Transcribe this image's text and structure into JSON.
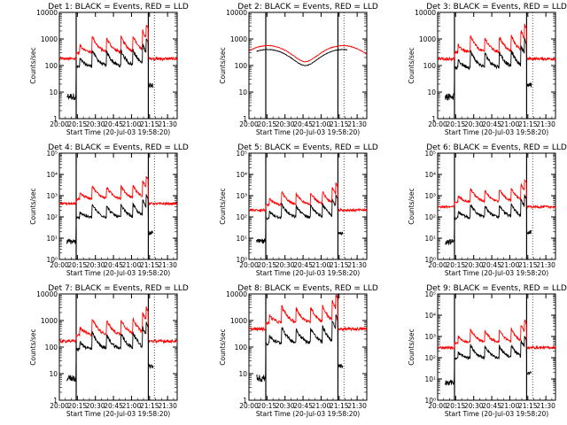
{
  "figure": {
    "time_ticks": [
      "20:00",
      "20:15",
      "20:30",
      "20:45",
      "21:00",
      "21:15",
      "21:30"
    ],
    "colors": {
      "events": "#000000",
      "lld": "#ff0000",
      "background": "#ffffff"
    }
  },
  "chart_data": [
    {
      "type": "line",
      "title": "Det 1: BLACK = Events, RED = LLD",
      "xlabel": "Start Time (20-Jul-03 19:58:20)",
      "ylabel": "Counts/sec",
      "yscale": "log",
      "ylim": [
        1,
        10000
      ],
      "ytick_labels": [
        "1",
        "10",
        "100",
        "1000",
        "10000"
      ],
      "xlim": [
        "20:00",
        "21:38"
      ],
      "x_ticks": [
        "20:00",
        "20:15",
        "20:30",
        "20:45",
        "21:00",
        "21:15",
        "21:30"
      ],
      "marker_lines": [
        "20:14",
        "21:14"
      ],
      "profile": "flare",
      "series": [
        {
          "name": "Events",
          "color": "#000000",
          "level": 100
        },
        {
          "name": "LLD",
          "color": "#ff0000",
          "level": 300
        }
      ]
    },
    {
      "type": "line",
      "title": "Det 2: BLACK = Events, RED = LLD",
      "xlabel": "Start Time (20-Jul-03 19:58:20)",
      "ylabel": "Counts/sec",
      "yscale": "log",
      "ylim": [
        1,
        10000
      ],
      "ytick_labels": [
        "1",
        "10",
        "100",
        "1000",
        "10000"
      ],
      "xlim": [
        "20:00",
        "21:38"
      ],
      "x_ticks": [
        "20:00",
        "20:15",
        "20:30",
        "20:45",
        "21:00",
        "21:15",
        "21:30"
      ],
      "marker_lines": [
        "20:14",
        "21:14"
      ],
      "profile": "smooth",
      "series": [
        {
          "name": "Events",
          "color": "#000000",
          "level": 250
        },
        {
          "name": "LLD",
          "color": "#ff0000",
          "level": 350
        }
      ]
    },
    {
      "type": "line",
      "title": "Det 3: BLACK = Events, RED = LLD",
      "xlabel": "Start Time (20-Jul-03 19:58:20)",
      "ylabel": "Counts/sec",
      "yscale": "log",
      "ylim": [
        1,
        10000
      ],
      "ytick_labels": [
        "1",
        "10",
        "100",
        "1000",
        "10000"
      ],
      "xlim": [
        "20:00",
        "21:38"
      ],
      "x_ticks": [
        "20:00",
        "20:15",
        "20:30",
        "20:45",
        "21:00",
        "21:15",
        "21:30"
      ],
      "marker_lines": [
        "20:14",
        "21:14"
      ],
      "profile": "flare",
      "series": [
        {
          "name": "Events",
          "color": "#000000",
          "level": 90
        },
        {
          "name": "LLD",
          "color": "#ff0000",
          "level": 300
        }
      ]
    },
    {
      "type": "line",
      "title": "Det 4: BLACK = Events, RED = LLD",
      "xlabel": "Start Time (20-Jul-03 19:58:20)",
      "ylabel": "Counts/sec",
      "yscale": "log",
      "ylim": [
        1,
        100000
      ],
      "ytick_labels": [
        "10⁰",
        "10¹",
        "10²",
        "10³",
        "10⁴",
        "10⁵"
      ],
      "xlim": [
        "20:00",
        "21:38"
      ],
      "x_ticks": [
        "20:00",
        "20:15",
        "20:30",
        "20:45",
        "21:00",
        "21:15",
        "21:30"
      ],
      "marker_lines": [
        "20:14",
        "21:14"
      ],
      "profile": "flare",
      "series": [
        {
          "name": "Events",
          "color": "#000000",
          "level": 100
        },
        {
          "name": "LLD",
          "color": "#ff0000",
          "level": 700
        }
      ]
    },
    {
      "type": "line",
      "title": "Det 5: BLACK = Events, RED = LLD",
      "xlabel": "Start Time (20-Jul-03 19:58:20)",
      "ylabel": "Counts/sec",
      "yscale": "log",
      "ylim": [
        1,
        100000
      ],
      "ytick_labels": [
        "10⁰",
        "10¹",
        "10²",
        "10³",
        "10⁴",
        "10⁵"
      ],
      "xlim": [
        "20:00",
        "21:38"
      ],
      "x_ticks": [
        "20:00",
        "20:15",
        "20:30",
        "20:45",
        "21:00",
        "21:15",
        "21:30"
      ],
      "marker_lines": [
        "20:14",
        "21:14"
      ],
      "profile": "flare",
      "series": [
        {
          "name": "Events",
          "color": "#000000",
          "level": 100
        },
        {
          "name": "LLD",
          "color": "#ff0000",
          "level": 350
        }
      ]
    },
    {
      "type": "line",
      "title": "Det 6: BLACK = Events, RED = LLD",
      "xlabel": "Start Time (20-Jul-03 19:58:20)",
      "ylabel": "Counts/sec",
      "yscale": "log",
      "ylim": [
        1,
        100000
      ],
      "ytick_labels": [
        "10⁰",
        "10¹",
        "10²",
        "10³",
        "10⁴",
        "10⁵"
      ],
      "xlim": [
        "20:00",
        "21:38"
      ],
      "x_ticks": [
        "20:00",
        "20:15",
        "20:30",
        "20:45",
        "21:00",
        "21:15",
        "21:30"
      ],
      "marker_lines": [
        "20:14",
        "21:14"
      ],
      "profile": "flare",
      "series": [
        {
          "name": "Events",
          "color": "#000000",
          "level": 100
        },
        {
          "name": "LLD",
          "color": "#ff0000",
          "level": 500
        }
      ]
    },
    {
      "type": "line",
      "title": "Det 7: BLACK = Events, RED = LLD",
      "xlabel": "Start Time (20-Jul-03 19:58:20)",
      "ylabel": "Counts/sec",
      "yscale": "log",
      "ylim": [
        1,
        10000
      ],
      "ytick_labels": [
        "1",
        "10",
        "100",
        "1000",
        "10000"
      ],
      "xlim": [
        "20:00",
        "21:38"
      ],
      "x_ticks": [
        "20:00",
        "20:15",
        "20:30",
        "20:45",
        "21:00",
        "21:15",
        "21:30"
      ],
      "marker_lines": [
        "20:14",
        "21:14"
      ],
      "profile": "flare",
      "series": [
        {
          "name": "Events",
          "color": "#000000",
          "level": 90
        },
        {
          "name": "LLD",
          "color": "#ff0000",
          "level": 280
        }
      ]
    },
    {
      "type": "line",
      "title": "Det 8: BLACK = Events, RED = LLD",
      "xlabel": "Start Time (20-Jul-03 19:58:20)",
      "ylabel": "Counts/sec",
      "yscale": "log",
      "ylim": [
        1,
        10000
      ],
      "ytick_labels": [
        "1",
        "10",
        "100",
        "1000",
        "10000"
      ],
      "xlim": [
        "20:00",
        "21:38"
      ],
      "x_ticks": [
        "20:00",
        "20:15",
        "20:30",
        "20:45",
        "21:00",
        "21:15",
        "21:30"
      ],
      "marker_lines": [
        "20:14",
        "21:14"
      ],
      "profile": "flare",
      "series": [
        {
          "name": "Events",
          "color": "#000000",
          "level": 150
        },
        {
          "name": "LLD",
          "color": "#ff0000",
          "level": 800
        }
      ]
    },
    {
      "type": "line",
      "title": "Det 9: BLACK = Events, RED = LLD",
      "xlabel": "Start Time (20-Jul-03 19:58:20)",
      "ylabel": "Counts/sec",
      "yscale": "log",
      "ylim": [
        1,
        100000
      ],
      "ytick_labels": [
        "10⁰",
        "10¹",
        "10²",
        "10³",
        "10⁴",
        "10⁵"
      ],
      "xlim": [
        "20:00",
        "21:38"
      ],
      "x_ticks": [
        "20:00",
        "20:15",
        "20:30",
        "20:45",
        "21:00",
        "21:15",
        "21:30"
      ],
      "marker_lines": [
        "20:14",
        "21:14"
      ],
      "profile": "flare",
      "series": [
        {
          "name": "Events",
          "color": "#000000",
          "level": 100
        },
        {
          "name": "LLD",
          "color": "#ff0000",
          "level": 500
        }
      ]
    }
  ]
}
